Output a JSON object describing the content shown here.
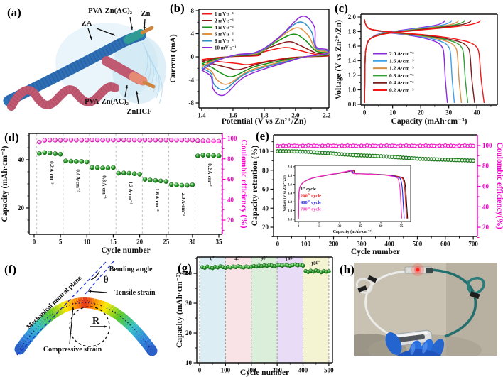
{
  "panel_tags": {
    "a": "(a)",
    "b": "(b)",
    "c": "(c)",
    "d": "(d)",
    "e": "(e)",
    "f": "(f)",
    "g": "(g)",
    "h": "(h)"
  },
  "colors": {
    "magenta_axis": "#f400cc",
    "green_dot": "#1f8f1f",
    "frame": "#111111"
  },
  "panel_a": {
    "labels": {
      "pva_top": "PVA-Zn(AC)₂",
      "zn": "Zn",
      "za": "ZA",
      "pva_bottom": "PVA-Zn(AC)₂",
      "znhcf": "ZnHCF"
    }
  },
  "panel_f": {
    "labels": {
      "neutral_plane": "Mechanical neutral plane",
      "bending_angle": "Bending angle",
      "theta": "θ",
      "tensile": "Tensile strain",
      "radius": "R",
      "compressive": "Compressive strain"
    }
  },
  "chart_data": [
    {
      "id": "b",
      "type": "line",
      "xlabel": "Potential (V vs Zn²⁺/Zn)",
      "ylabel": "Current (mA)",
      "xlim": [
        1.4,
        2.2
      ],
      "ylim": [
        -8,
        8
      ],
      "xticks": [
        1.4,
        1.6,
        1.8,
        2.0,
        2.2
      ],
      "yticks": [
        -8,
        -4,
        0,
        4,
        8
      ],
      "legend_pos": "top-left",
      "series": [
        {
          "name": "1 mV·s⁻¹",
          "color": "#f51515",
          "anodic_peak_mA": 1.6,
          "anodic_peak_V": 1.93,
          "cathodic_peak_mA": -1.35,
          "cathodic_peak_V": 1.7
        },
        {
          "name": "2 mV·s⁻¹",
          "color": "#8b1a1a",
          "anodic_peak_mA": 2.6,
          "anodic_peak_V": 1.95,
          "cathodic_peak_mA": -2.2,
          "cathodic_peak_V": 1.64
        },
        {
          "name": "4 mV·s⁻¹",
          "color": "#149414",
          "anodic_peak_mA": 3.9,
          "anodic_peak_V": 1.98,
          "cathodic_peak_mA": -3.4,
          "cathodic_peak_V": 1.6
        },
        {
          "name": "6 mV·s⁻¹",
          "color": "#e2923e",
          "anodic_peak_mA": 5.0,
          "anodic_peak_V": 2.0,
          "cathodic_peak_mA": -4.7,
          "cathodic_peak_V": 1.57
        },
        {
          "name": "8 mV·s⁻¹",
          "color": "#2d8fc5",
          "anodic_peak_mA": 6.0,
          "anodic_peak_V": 2.02,
          "cathodic_peak_mA": -5.6,
          "cathodic_peak_V": 1.55
        },
        {
          "name": "10 mV·s⁻¹",
          "color": "#8f2bd6",
          "anodic_peak_mA": 7.0,
          "anodic_peak_V": 2.04,
          "cathodic_peak_mA": -6.6,
          "cathodic_peak_V": 1.545
        }
      ]
    },
    {
      "id": "c",
      "type": "line",
      "xlabel": "Capacity (mAh·cm⁻³)",
      "ylabel": "Voltage (V vs Zn²⁺/Zn)",
      "xlim": [
        0,
        43
      ],
      "ylim": [
        0.8,
        2.0
      ],
      "xticks": [
        0,
        10,
        20,
        30,
        40
      ],
      "yticks": [
        0.8,
        1.0,
        1.2,
        1.4,
        1.6,
        1.8,
        2.0
      ],
      "legend_pos": "mid-left",
      "series": [
        {
          "name": "2.0 A·cm⁻³",
          "color": "#8a2be2",
          "discharge_capacity": 29.5
        },
        {
          "name": "1.6 A·cm⁻³",
          "color": "#3da0e8",
          "discharge_capacity": 32.0
        },
        {
          "name": "1.2 A·cm⁻³",
          "color": "#d59045",
          "discharge_capacity": 34.5
        },
        {
          "name": "0.8 A·cm⁻³",
          "color": "#2f9e33",
          "discharge_capacity": 36.8
        },
        {
          "name": "0.4 A·cm⁻³",
          "color": "#7a1d1d",
          "discharge_capacity": 39.2
        },
        {
          "name": "0.2 A·cm⁻³",
          "color": "#f51515",
          "discharge_capacity": 42.6
        }
      ]
    },
    {
      "id": "d",
      "type": "scatter",
      "xlabel": "Cycle number",
      "ylabel_left": "Capacity (mAh·cm⁻³)",
      "ylabel_right": "Coulombic efficiency (%)",
      "xlim": [
        0,
        35
      ],
      "ylim_left": [
        10,
        50
      ],
      "ylim_right": [
        20,
        100
      ],
      "xticks": [
        0,
        5,
        10,
        15,
        20,
        25,
        30,
        35
      ],
      "yticks_left": [
        20,
        40
      ],
      "yticks_right": [
        20,
        40,
        60,
        80,
        100
      ],
      "rate_segments": [
        "0.2 A·cm⁻³",
        "0.4 A·cm⁻³",
        "0.8 A·cm⁻³",
        "1.2 A·cm⁻³",
        "1.6 A·cm⁻³",
        "2.0 A·cm⁻³",
        "0.2 A·cm⁻³"
      ],
      "capacity": [
        42.6,
        43.0,
        42.8,
        42.5,
        42.3,
        39.5,
        39.4,
        39.3,
        39.3,
        39.1,
        36.8,
        36.7,
        36.6,
        36.6,
        36.8,
        34.4,
        34.5,
        34.4,
        34.2,
        34.0,
        31.9,
        31.6,
        31.4,
        31.2,
        31.0,
        29.7,
        29.5,
        29.4,
        29.4,
        29.6,
        41.6,
        41.9,
        41.8,
        41.7,
        41.6
      ],
      "coulombic_efficiency": [
        96.5,
        98.2,
        98.4,
        98.3,
        98.2,
        98.5,
        98.4,
        98.4,
        98.3,
        98.4,
        98.6,
        98.5,
        98.5,
        98.4,
        98.5,
        98.6,
        98.5,
        98.4,
        98.5,
        98.4,
        98.5,
        98.4,
        98.4,
        98.3,
        98.4,
        98.5,
        98.4,
        98.5,
        98.4,
        98.4,
        97.8,
        97.6,
        97.5,
        97.4,
        97.3
      ]
    },
    {
      "id": "e",
      "type": "scatter",
      "xlabel": "Cycle number",
      "ylabel_left": "Capacity retention (%)",
      "ylabel_right": "Coulombic efficiency(%)",
      "xlim": [
        0,
        700
      ],
      "ylim_left": [
        20,
        100
      ],
      "ylim_right": [
        20,
        100
      ],
      "xticks": [
        0,
        100,
        200,
        300,
        400,
        500,
        600,
        700
      ],
      "yticks_left": [
        20,
        40,
        60,
        80,
        100
      ],
      "yticks_right": [
        20,
        40,
        60,
        80,
        100
      ],
      "cycle_start": 0,
      "cycle_step": 10,
      "retention": [
        100.0,
        100.1,
        100.0,
        100.0,
        99.9,
        99.9,
        99.8,
        99.8,
        99.7,
        99.6,
        99.5,
        99.3,
        99.1,
        98.9,
        98.7,
        98.5,
        98.3,
        98.1,
        97.9,
        97.7,
        97.5,
        97.2,
        97.0,
        96.8,
        96.6,
        96.4,
        96.2,
        96.0,
        95.8,
        95.7,
        95.6,
        95.5,
        95.4,
        95.2,
        95.1,
        95.0,
        94.8,
        94.7,
        94.5,
        94.4,
        94.2,
        94.0,
        93.8,
        93.6,
        93.4,
        93.2,
        93.0,
        92.8,
        92.6,
        92.4,
        92.2,
        92.0,
        91.9,
        91.8,
        91.7,
        91.6,
        91.5,
        91.4,
        91.3,
        91.2,
        91.1,
        91.0,
        90.9,
        90.8,
        90.7,
        90.6,
        90.5,
        90.4,
        90.3,
        90.2,
        90.1
      ],
      "coulombic_efficiency": [
        99.6,
        99.2,
        99.8,
        99.4,
        100.0,
        99.5,
        99.8,
        99.6,
        99.2,
        99.8,
        99.4,
        100.0,
        99.5,
        99.8,
        99.6,
        99.2,
        99.8,
        99.4,
        100.0,
        99.5,
        99.8,
        99.6,
        99.2,
        99.8,
        99.4,
        100.0,
        99.5,
        99.8,
        99.6,
        99.2,
        99.8,
        99.4,
        100.0,
        99.5,
        99.8,
        99.6,
        99.2,
        99.8,
        99.4,
        100.0,
        99.5,
        99.8,
        99.6,
        99.2,
        99.8,
        99.4,
        100.0,
        99.5,
        99.8,
        99.6,
        99.2,
        99.8,
        99.4,
        100.0,
        99.5,
        99.8,
        99.6,
        99.2,
        99.8,
        99.4,
        100.0,
        99.5,
        99.8,
        99.6,
        99.2,
        99.8,
        99.4,
        100.0,
        99.5,
        99.8,
        99.6
      ]
    },
    {
      "id": "e_inset",
      "type": "line",
      "xlabel": "Capacity (mAh·cm⁻³)",
      "ylabel": "Voltage (V vs Zn²⁺/Zn)",
      "xlim": [
        0,
        80
      ],
      "ylim": [
        0.8,
        2.0
      ],
      "xticks": [
        0,
        15,
        30,
        45,
        60,
        75
      ],
      "yticks": [
        0.8,
        1.0,
        1.2,
        1.4,
        1.6,
        1.8,
        2.0
      ],
      "series": [
        {
          "num": "1",
          "sup": "st",
          "rest": " cycle",
          "color": "#111111",
          "end_capacity": 79.5
        },
        {
          "num": "200",
          "sup": "th",
          "rest": " cycle",
          "color": "#f51515",
          "end_capacity": 78.8
        },
        {
          "num": "400",
          "sup": "th",
          "rest": " cycle",
          "color": "#2222ee",
          "end_capacity": 77.0
        },
        {
          "num": "700",
          "sup": "th",
          "rest": " cycle",
          "color": "#ff30c0",
          "end_capacity": 75.3
        }
      ]
    },
    {
      "id": "g",
      "type": "scatter",
      "xlabel": "Cycle number",
      "ylabel": "Capacity (mAh·cm⁻³)",
      "xlim": [
        0,
        500
      ],
      "ylim": [
        10,
        45
      ],
      "xticks": [
        0,
        100,
        200,
        300,
        400,
        500
      ],
      "yticks": [
        10,
        20,
        30,
        40
      ],
      "cycle_start": 10,
      "cycle_step": 10,
      "bands": [
        {
          "label": "0°",
          "color": "#dceef3"
        },
        {
          "label": "45°",
          "color": "#fae3e6"
        },
        {
          "label": "90°",
          "color": "#daeeda"
        },
        {
          "label": "145°",
          "color": "#e8dcf6"
        },
        {
          "label": "180°",
          "color": "#f4f3d2"
        }
      ],
      "capacity": [
        42.1,
        41.9,
        42.3,
        42.0,
        41.8,
        42.2,
        42.0,
        42.4,
        42.1,
        41.9,
        42.2,
        42.0,
        42.3,
        42.1,
        42.4,
        42.2,
        42.0,
        42.3,
        42.1,
        42.2,
        42.5,
        42.3,
        42.6,
        42.4,
        42.7,
        42.5,
        42.8,
        42.6,
        42.4,
        42.7,
        42.8,
        42.6,
        42.9,
        42.7,
        42.5,
        42.8,
        43.0,
        42.7,
        42.9,
        42.6,
        40.8,
        40.5,
        40.9,
        40.6,
        41.0,
        40.7,
        40.4,
        40.8,
        40.6,
        40.7
      ]
    }
  ]
}
